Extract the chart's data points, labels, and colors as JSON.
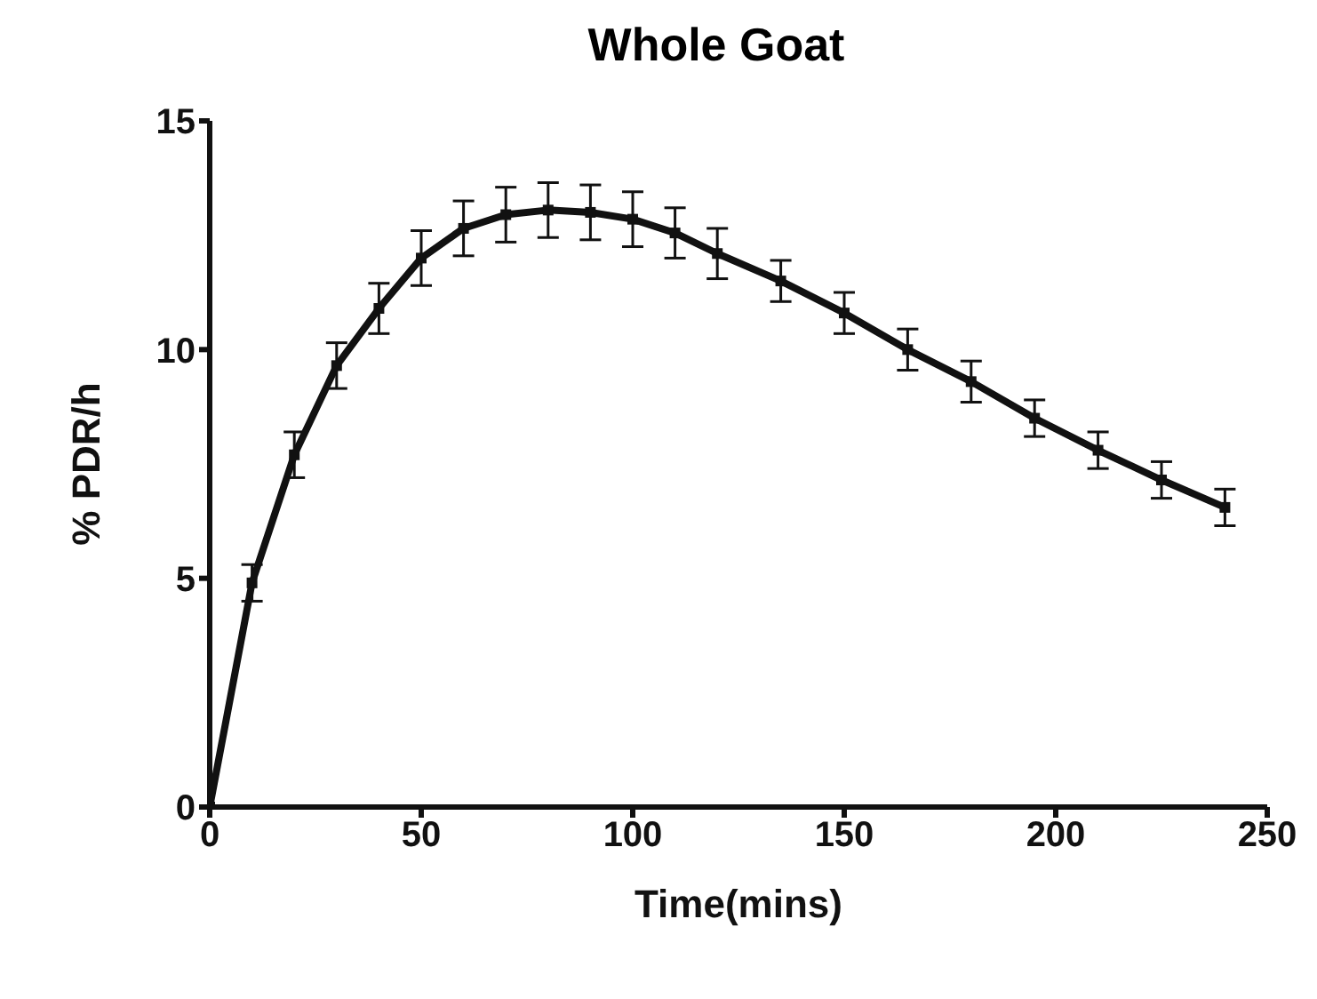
{
  "chart_data": {
    "type": "line",
    "title": "Whole Goat",
    "xlabel": "Time(mins)",
    "ylabel": "% PDR/h",
    "x": [
      0,
      10,
      20,
      30,
      40,
      50,
      60,
      70,
      80,
      90,
      100,
      110,
      120,
      135,
      150,
      165,
      180,
      195,
      210,
      225,
      240
    ],
    "values": [
      0,
      4.9,
      7.7,
      9.65,
      10.9,
      12.0,
      12.65,
      12.95,
      13.05,
      13.0,
      12.85,
      12.55,
      12.1,
      11.5,
      10.8,
      10.0,
      9.3,
      8.5,
      7.8,
      7.15,
      6.55
    ],
    "errors": [
      null,
      0.4,
      0.5,
      0.5,
      0.55,
      0.6,
      0.6,
      0.6,
      0.6,
      0.6,
      0.6,
      0.55,
      0.55,
      0.45,
      0.45,
      0.45,
      0.45,
      0.4,
      0.4,
      0.4,
      0.4
    ],
    "color": "#111111",
    "marker": "square",
    "xlim": [
      0,
      250
    ],
    "xticks": [
      0,
      50,
      100,
      150,
      200,
      250
    ],
    "ylim": [
      0,
      15
    ],
    "yticks": [
      0,
      5,
      10,
      15
    ],
    "grid": false
  }
}
